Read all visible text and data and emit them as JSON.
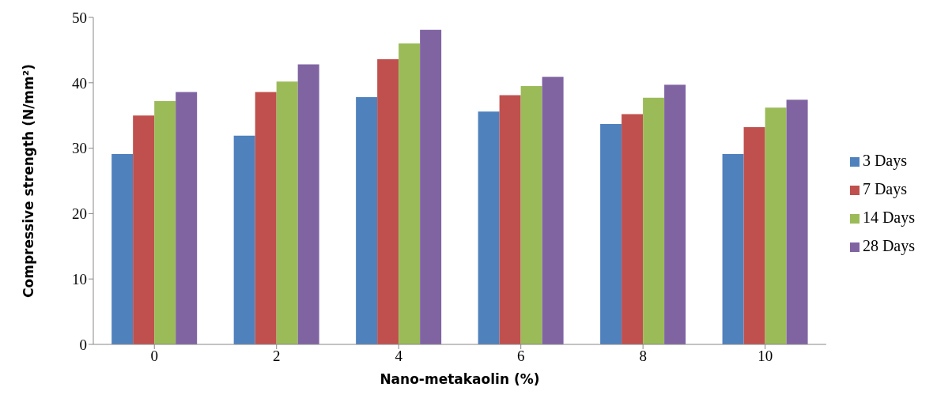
{
  "chart_data": {
    "type": "bar",
    "xlabel": "Nano-metakaolin  (%)",
    "ylabel": "Compressive strength (N/mm²)",
    "categories": [
      "0",
      "2",
      "4",
      "6",
      "8",
      "10"
    ],
    "series": [
      {
        "name": "3 Days",
        "color": "#4f81bd",
        "values": [
          29.1,
          31.9,
          37.8,
          35.6,
          33.7,
          29.1
        ]
      },
      {
        "name": "7 Days",
        "color": "#c0504d",
        "values": [
          35.0,
          38.6,
          43.6,
          38.1,
          35.2,
          33.2
        ]
      },
      {
        "name": "14 Days",
        "color": "#9bbb59",
        "values": [
          37.2,
          40.2,
          46.0,
          39.5,
          37.7,
          36.2
        ]
      },
      {
        "name": "28 Days",
        "color": "#8064a2",
        "values": [
          38.6,
          42.8,
          48.1,
          40.9,
          39.7,
          37.4
        ]
      }
    ],
    "ylim": [
      0,
      50
    ],
    "yticks": [
      0,
      10,
      20,
      30,
      40,
      50
    ],
    "grid": false,
    "legend": "right"
  }
}
